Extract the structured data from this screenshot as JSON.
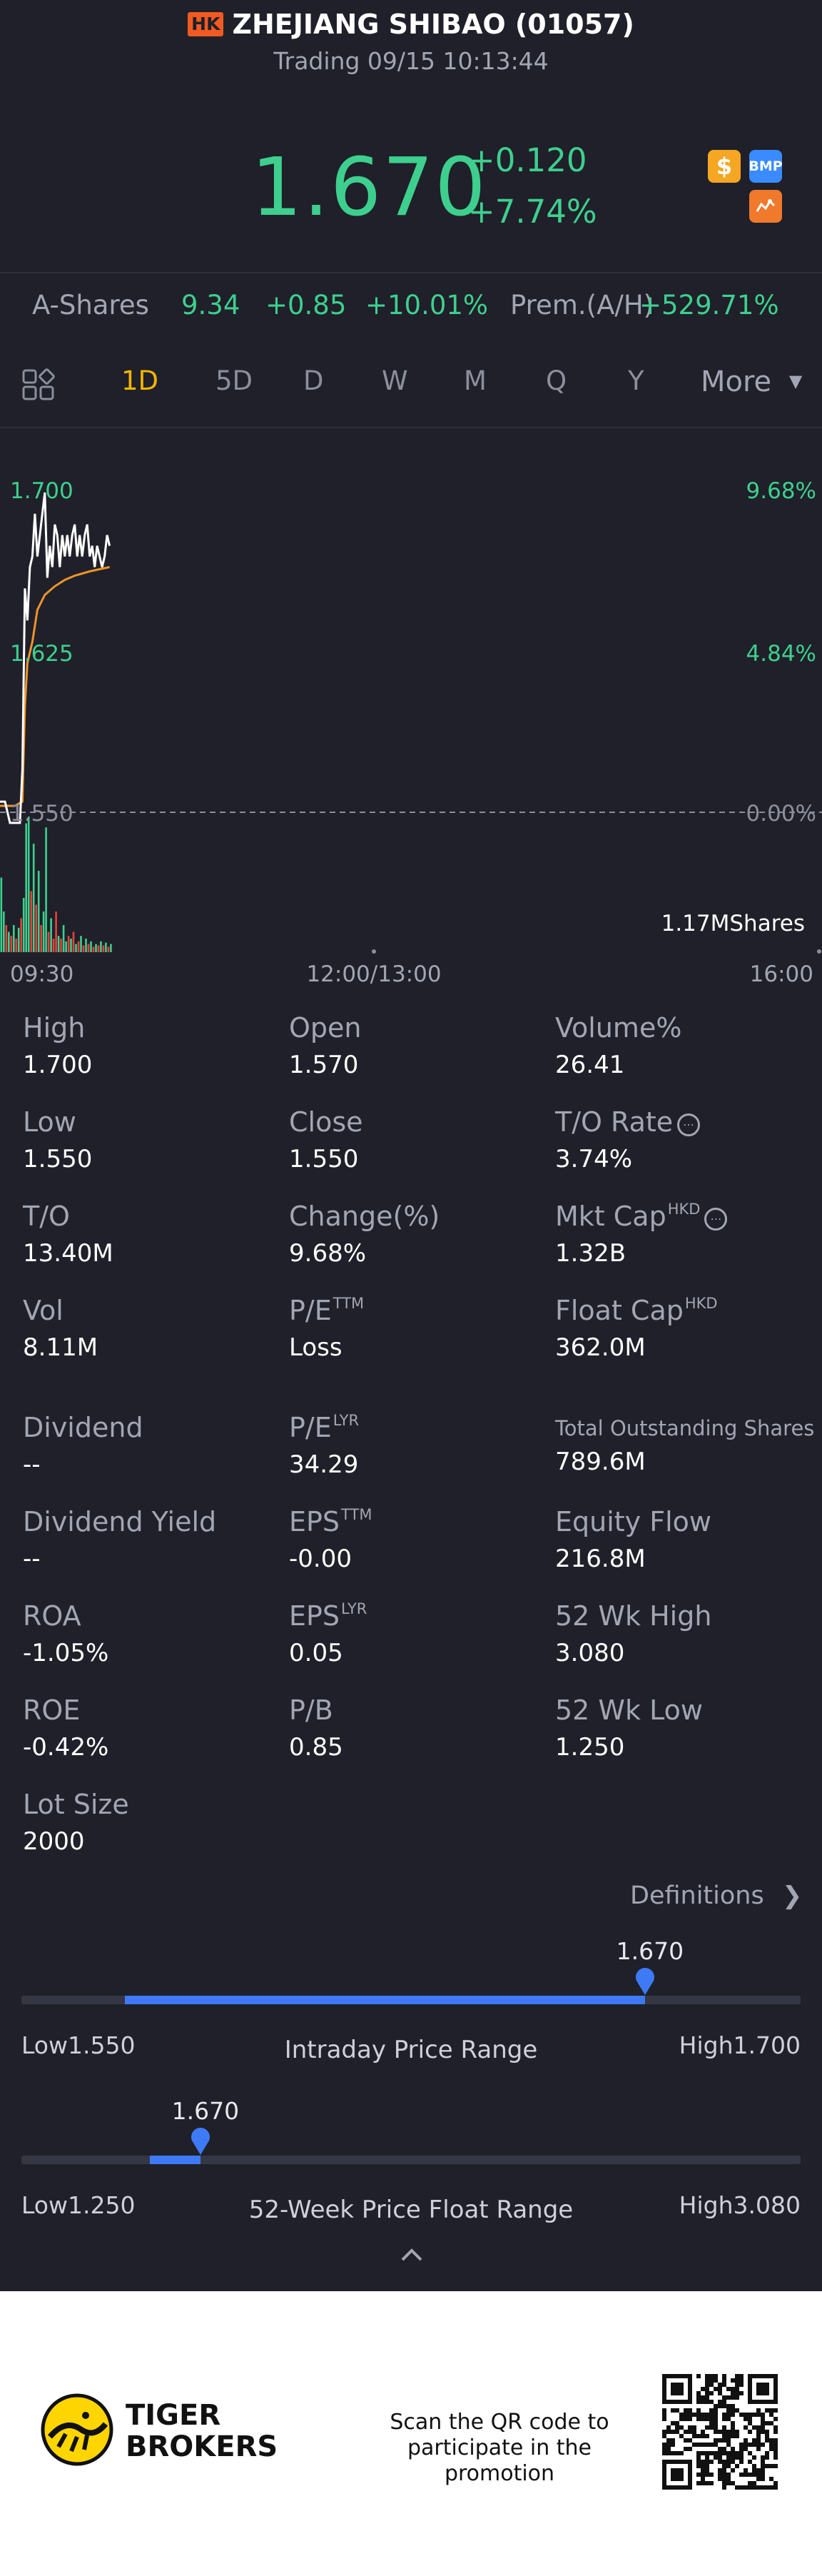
{
  "header": {
    "market_badge": "HK",
    "title": "ZHEJIANG SHIBAO (01057)",
    "status": "Trading 09/15 10:13:44"
  },
  "quote": {
    "price": "1.670",
    "change": "+0.120",
    "change_pct": "+7.74%",
    "icons": [
      "dollar-badge-icon",
      "bmp-badge-icon",
      "candlestick-badge-icon"
    ],
    "badge_text": {
      "s": "$",
      "bmp": "BMP"
    }
  },
  "ashares": {
    "label": "A-Shares",
    "price": "9.34",
    "change": "+0.85",
    "change_pct": "+10.01%",
    "premium_label": "Prem.(A/H)",
    "premium_value": "+529.71%"
  },
  "tabs": [
    "1D",
    "5D",
    "D",
    "W",
    "M",
    "Q",
    "Y",
    "More"
  ],
  "active_tab": "1D",
  "chart_data": {
    "type": "line",
    "y_left_ticks": [
      "1.700",
      "1.625",
      "1.550"
    ],
    "y_right_ticks": [
      "9.68%",
      "4.84%",
      "0.00%"
    ],
    "x_ticks": [
      "09:30",
      "12:00/13:00",
      "16:00"
    ],
    "ylim": [
      1.53,
      1.71
    ],
    "session_minutes": 330,
    "price_series": [
      {
        "t": 0,
        "v": 1.555
      },
      {
        "t": 2,
        "v": 1.555
      },
      {
        "t": 4,
        "v": 1.545
      },
      {
        "t": 8,
        "v": 1.545
      },
      {
        "t": 9,
        "v": 1.57
      },
      {
        "t": 10,
        "v": 1.655
      },
      {
        "t": 11,
        "v": 1.64
      },
      {
        "t": 12,
        "v": 1.665
      },
      {
        "t": 13,
        "v": 1.67
      },
      {
        "t": 14,
        "v": 1.69
      },
      {
        "t": 15,
        "v": 1.67
      },
      {
        "t": 16,
        "v": 1.68
      },
      {
        "t": 17,
        "v": 1.69
      },
      {
        "t": 18,
        "v": 1.7
      },
      {
        "t": 19,
        "v": 1.66
      },
      {
        "t": 20,
        "v": 1.675
      },
      {
        "t": 21,
        "v": 1.665
      },
      {
        "t": 22,
        "v": 1.685
      },
      {
        "t": 23,
        "v": 1.68
      },
      {
        "t": 24,
        "v": 1.665
      },
      {
        "t": 25,
        "v": 1.68
      },
      {
        "t": 26,
        "v": 1.67
      },
      {
        "t": 27,
        "v": 1.68
      },
      {
        "t": 28,
        "v": 1.67
      },
      {
        "t": 29,
        "v": 1.68
      },
      {
        "t": 30,
        "v": 1.685
      },
      {
        "t": 31,
        "v": 1.67
      },
      {
        "t": 32,
        "v": 1.68
      },
      {
        "t": 33,
        "v": 1.67
      },
      {
        "t": 34,
        "v": 1.68
      },
      {
        "t": 35,
        "v": 1.685
      },
      {
        "t": 36,
        "v": 1.67
      },
      {
        "t": 37,
        "v": 1.675
      },
      {
        "t": 38,
        "v": 1.665
      },
      {
        "t": 39,
        "v": 1.675
      },
      {
        "t": 40,
        "v": 1.67
      },
      {
        "t": 41,
        "v": 1.665
      },
      {
        "t": 42,
        "v": 1.67
      },
      {
        "t": 43,
        "v": 1.68
      },
      {
        "t": 44,
        "v": 1.675
      }
    ],
    "avg_series": [
      {
        "t": 0,
        "v": 1.553
      },
      {
        "t": 6,
        "v": 1.553
      },
      {
        "t": 9,
        "v": 1.555
      },
      {
        "t": 10,
        "v": 1.6
      },
      {
        "t": 11,
        "v": 1.62
      },
      {
        "t": 13,
        "v": 1.63
      },
      {
        "t": 15,
        "v": 1.645
      },
      {
        "t": 18,
        "v": 1.652
      },
      {
        "t": 22,
        "v": 1.656
      },
      {
        "t": 26,
        "v": 1.659
      },
      {
        "t": 30,
        "v": 1.661
      },
      {
        "t": 36,
        "v": 1.663
      },
      {
        "t": 44,
        "v": 1.665
      }
    ],
    "volume_label": "1.17MShares",
    "volume_bars": [
      {
        "t": 0,
        "v": 0.55,
        "up": true
      },
      {
        "t": 1,
        "v": 0.3,
        "up": true
      },
      {
        "t": 2,
        "v": 0.2,
        "up": false
      },
      {
        "t": 3,
        "v": 0.15,
        "up": true
      },
      {
        "t": 4,
        "v": 0.12,
        "up": false
      },
      {
        "t": 5,
        "v": 0.2,
        "up": true
      },
      {
        "t": 6,
        "v": 0.1,
        "up": false
      },
      {
        "t": 7,
        "v": 0.18,
        "up": true
      },
      {
        "t": 8,
        "v": 0.25,
        "up": false
      },
      {
        "t": 9,
        "v": 0.4,
        "up": true
      },
      {
        "t": 10,
        "v": 0.95,
        "up": true
      },
      {
        "t": 11,
        "v": 1.0,
        "up": true
      },
      {
        "t": 12,
        "v": 0.45,
        "up": false
      },
      {
        "t": 13,
        "v": 0.8,
        "up": true
      },
      {
        "t": 14,
        "v": 0.35,
        "up": false
      },
      {
        "t": 15,
        "v": 0.6,
        "up": true
      },
      {
        "t": 16,
        "v": 0.2,
        "up": false
      },
      {
        "t": 17,
        "v": 0.3,
        "up": true
      },
      {
        "t": 18,
        "v": 0.92,
        "up": true
      },
      {
        "t": 19,
        "v": 0.15,
        "up": false
      },
      {
        "t": 20,
        "v": 0.25,
        "up": true
      },
      {
        "t": 21,
        "v": 0.1,
        "up": false
      },
      {
        "t": 22,
        "v": 0.3,
        "up": false
      },
      {
        "t": 23,
        "v": 0.12,
        "up": true
      },
      {
        "t": 24,
        "v": 0.1,
        "up": false
      },
      {
        "t": 25,
        "v": 0.2,
        "up": true
      },
      {
        "t": 26,
        "v": 0.08,
        "up": true
      },
      {
        "t": 27,
        "v": 0.12,
        "up": false
      },
      {
        "t": 28,
        "v": 0.1,
        "up": true
      },
      {
        "t": 29,
        "v": 0.15,
        "up": false
      },
      {
        "t": 30,
        "v": 0.06,
        "up": true
      },
      {
        "t": 31,
        "v": 0.08,
        "up": false
      },
      {
        "t": 32,
        "v": 0.12,
        "up": true
      },
      {
        "t": 33,
        "v": 0.05,
        "up": false
      },
      {
        "t": 34,
        "v": 0.1,
        "up": true
      },
      {
        "t": 35,
        "v": 0.06,
        "up": false
      },
      {
        "t": 36,
        "v": 0.08,
        "up": true
      },
      {
        "t": 37,
        "v": 0.04,
        "up": false
      },
      {
        "t": 38,
        "v": 0.06,
        "up": true
      },
      {
        "t": 39,
        "v": 0.05,
        "up": false
      },
      {
        "t": 40,
        "v": 0.08,
        "up": true
      },
      {
        "t": 41,
        "v": 0.05,
        "up": false
      },
      {
        "t": 42,
        "v": 0.07,
        "up": true
      },
      {
        "t": 43,
        "v": 0.04,
        "up": false
      },
      {
        "t": 44,
        "v": 0.06,
        "up": true
      }
    ],
    "colors": {
      "price": "#ffffff",
      "avg": "#f0922b",
      "up": "#3ecf8e",
      "down": "#e8413d",
      "tick_green": "#3ecf8e",
      "grid": "#8b8f9c"
    }
  },
  "stats": {
    "high": {
      "label": "High",
      "value": "1.700"
    },
    "open": {
      "label": "Open",
      "value": "1.570"
    },
    "volume_pct": {
      "label": "Volume%",
      "value": "26.41"
    },
    "low": {
      "label": "Low",
      "value": "1.550"
    },
    "close": {
      "label": "Close",
      "value": "1.550"
    },
    "to_rate": {
      "label": "T/O Rate",
      "value": "3.74%"
    },
    "to": {
      "label": "T/O",
      "value": "13.40M"
    },
    "change": {
      "label": "Change(%)",
      "value": "9.68%"
    },
    "mkt_cap": {
      "label": "Mkt Cap",
      "sup": "HKD",
      "value": "1.32B"
    },
    "vol": {
      "label": "Vol",
      "value": "8.11M"
    },
    "pe_ttm": {
      "label": "P/E",
      "sup": "TTM",
      "value": "Loss"
    },
    "float_cap": {
      "label": "Float Cap",
      "sup": "HKD",
      "value": "362.0M"
    },
    "dividend": {
      "label": "Dividend",
      "value": "--"
    },
    "pe_lyr": {
      "label": "P/E",
      "sup": "LYR",
      "value": "34.29"
    },
    "total_shares": {
      "label": "Total Outstanding Shares",
      "value": "789.6M"
    },
    "dividend_yield": {
      "label": "Dividend Yield",
      "value": "--"
    },
    "eps_ttm": {
      "label": "EPS",
      "sup": "TTM",
      "value": "-0.00"
    },
    "equity_flow": {
      "label": "Equity Flow",
      "value": "216.8M"
    },
    "roa": {
      "label": "ROA",
      "value": "-1.05%"
    },
    "eps_lyr": {
      "label": "EPS",
      "sup": "LYR",
      "value": "0.05"
    },
    "wk52_high": {
      "label": "52 Wk High",
      "value": "3.080"
    },
    "roe": {
      "label": "ROE",
      "value": "-0.42%"
    },
    "pb": {
      "label": "P/B",
      "value": "0.85"
    },
    "wk52_low": {
      "label": "52 Wk Low",
      "value": "1.250"
    },
    "lot_size": {
      "label": "Lot Size",
      "value": "2000"
    },
    "info_glyph": "⋯"
  },
  "definitions": "Definitions",
  "intraday_range": {
    "title": "Intraday Price Range",
    "low_label": "Low1.550",
    "high_label": "High1.700",
    "current": "1.670",
    "low": 1.55,
    "high": 1.7,
    "value": 1.67
  },
  "week52_range": {
    "title": "52-Week Price Float Range",
    "low_label": "Low1.250",
    "high_label": "High3.080",
    "current": "1.670",
    "low": 1.25,
    "high": 3.08,
    "value": 1.67
  },
  "footer": {
    "brand_line1": "TIGER",
    "brand_line2": "BROKERS",
    "scan_line1": "Scan the QR code to",
    "scan_line2": "participate in the promotion"
  }
}
